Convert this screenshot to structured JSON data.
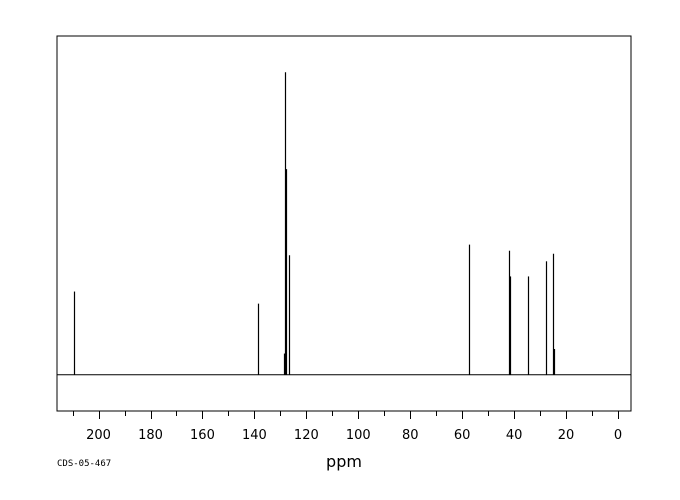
{
  "chart_data": {
    "type": "line",
    "subtype": "nmr-stick-spectrum",
    "title": "",
    "xlabel": "ppm",
    "ylabel": "",
    "xlim": [
      216,
      -5
    ],
    "ylim": [
      -0.12,
      1.12
    ],
    "x_reversed": true,
    "grid": false,
    "x_ticks": [
      200,
      180,
      160,
      140,
      120,
      100,
      80,
      60,
      40,
      20,
      0
    ],
    "peaks": [
      {
        "ppm": 209.6,
        "intensity": 0.275
      },
      {
        "ppm": 138.8,
        "intensity": 0.235
      },
      {
        "ppm": 128.6,
        "intensity": 0.07
      },
      {
        "ppm": 128.3,
        "intensity": 1.0
      },
      {
        "ppm": 128.0,
        "intensity": 0.68
      },
      {
        "ppm": 126.7,
        "intensity": 0.395
      },
      {
        "ppm": 57.2,
        "intensity": 0.43
      },
      {
        "ppm": 42.0,
        "intensity": 0.41
      },
      {
        "ppm": 41.6,
        "intensity": 0.325
      },
      {
        "ppm": 34.8,
        "intensity": 0.325
      },
      {
        "ppm": 27.7,
        "intensity": 0.375
      },
      {
        "ppm": 25.1,
        "intensity": 0.4
      },
      {
        "ppm": 24.6,
        "intensity": 0.085
      }
    ]
  },
  "footer": {
    "code": "CDS-05-467"
  }
}
